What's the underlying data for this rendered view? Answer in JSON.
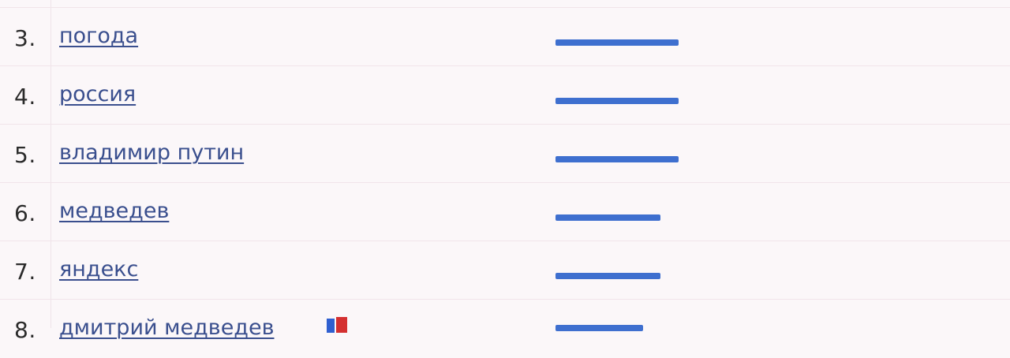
{
  "rows": [
    {
      "rank": "3.",
      "term": "погода",
      "level": 0.92
    },
    {
      "rank": "4.",
      "term": "россия",
      "level": 0.92
    },
    {
      "rank": "5.",
      "term": "владимир путин",
      "level": 0.92
    },
    {
      "rank": "6.",
      "term": "медведев",
      "level": 0.78
    },
    {
      "rank": "7.",
      "term": "яндекс",
      "level": 0.78
    },
    {
      "rank": "8.",
      "term": "дмитрий медведев",
      "level": 0.65
    }
  ],
  "colors": {
    "bar": "#3e6fcf",
    "link": "#3a4f8e",
    "background": "#fbf7f9"
  },
  "icons": {
    "trend_badge": "flag-icon"
  }
}
